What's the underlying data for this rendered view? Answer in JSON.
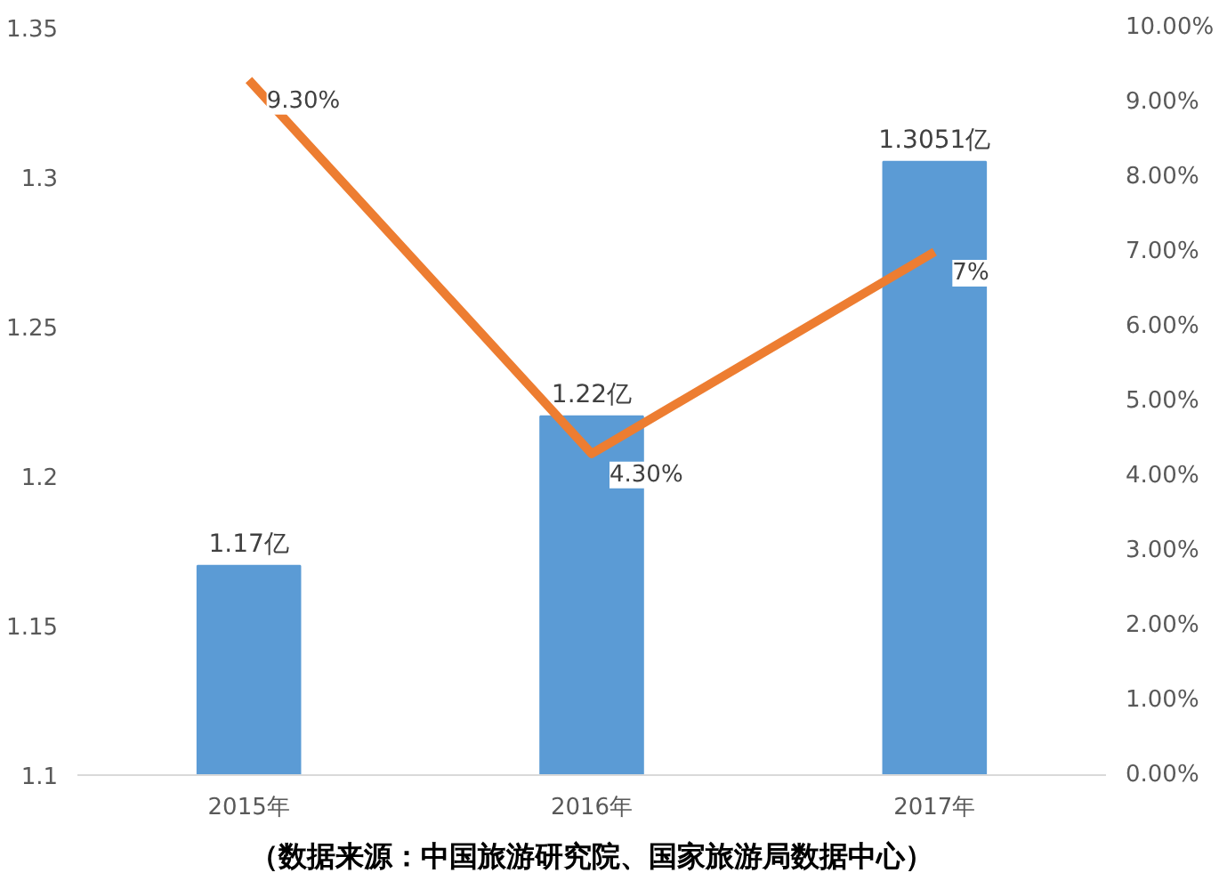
{
  "chart_data": {
    "type": "bar",
    "categories": [
      "2015年",
      "2016年",
      "2017年"
    ],
    "series": [
      {
        "color": "#5b9bd5",
        "values": [
          1.17,
          1.22,
          1.3051
        ],
        "value_labels": [
          "1.17亿",
          "1.22亿",
          "1.3051亿"
        ]
      },
      {
        "type": "line",
        "axis": "y2",
        "color": "#ed7d31",
        "values": [
          9.3,
          4.3,
          7
        ],
        "value_labels": [
          "9.30%",
          "4.30%",
          "7%"
        ]
      }
    ],
    "ylim": [
      1.1,
      1.35
    ],
    "yticks": [
      1.1,
      1.15,
      1.2,
      1.25,
      1.3,
      1.35
    ],
    "y2lim": [
      0,
      10
    ],
    "y2ticks": [
      {
        "value": 0,
        "label": "0.00%"
      },
      {
        "value": 1,
        "label": "1.00%"
      },
      {
        "value": 2,
        "label": "2.00%"
      },
      {
        "value": 3,
        "label": "3.00%"
      },
      {
        "value": 4,
        "label": "4.00%"
      },
      {
        "value": 5,
        "label": "5.00%"
      },
      {
        "value": 6,
        "label": "6.00%"
      },
      {
        "value": 7,
        "label": "7.00%"
      },
      {
        "value": 8,
        "label": "8.00%"
      },
      {
        "value": 9,
        "label": "9.00%"
      },
      {
        "value": 10,
        "label": "10.00%"
      }
    ],
    "grid": false,
    "annotations": [
      "（数据来源：中国旅游研究院、国家旅游局数据中心）"
    ]
  }
}
